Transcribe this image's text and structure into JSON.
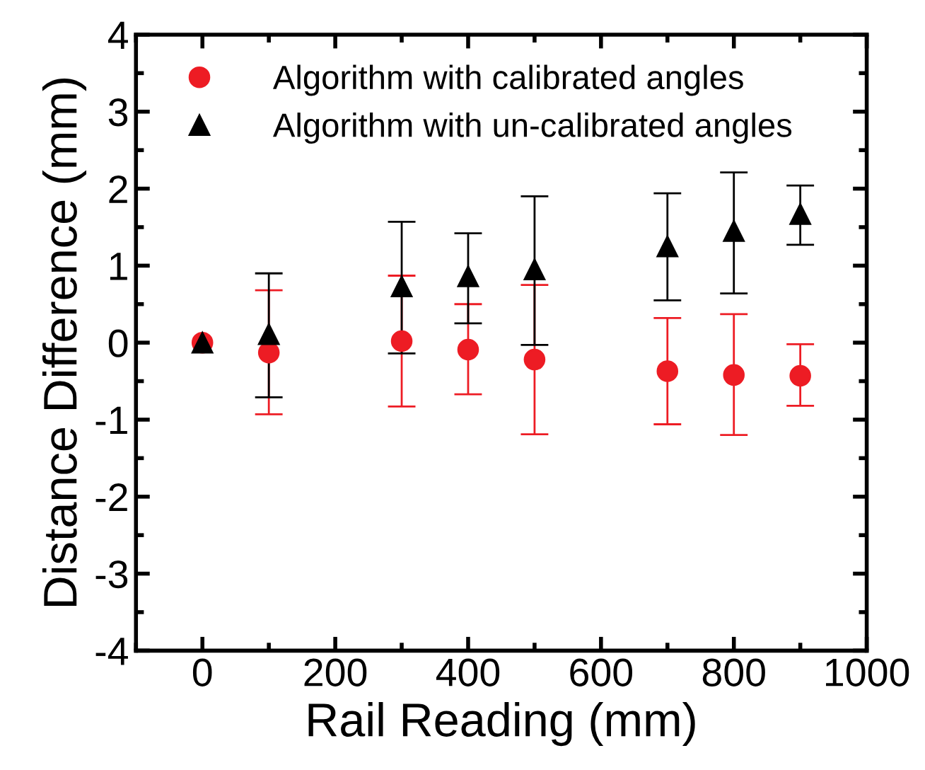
{
  "chart_data": {
    "type": "scatter",
    "xlabel": "Rail Reading (mm)",
    "ylabel": "Distance Difference (mm)",
    "x": [
      0,
      100,
      300,
      400,
      500,
      700,
      800,
      900
    ],
    "xlim": [
      -100,
      1000
    ],
    "xticks": [
      0,
      200,
      400,
      600,
      800,
      1000
    ],
    "ylim": [
      -4,
      4
    ],
    "yticks": [
      -4,
      -3,
      -2,
      -1,
      0,
      1,
      2,
      3,
      4
    ],
    "grid": false,
    "legend": "top left",
    "series": [
      {
        "name": "Algorithm with calibrated angles",
        "color": "#ed1c24",
        "marker": "circle",
        "values": [
          0,
          -0.13,
          0.02,
          -0.09,
          -0.22,
          -0.37,
          -0.42,
          -0.43
        ],
        "errors": [
          null,
          [
            -0.93,
            0.68
          ],
          [
            -0.83,
            0.87
          ],
          [
            -0.67,
            0.5
          ],
          [
            -1.19,
            0.75
          ],
          [
            -1.06,
            0.32
          ],
          [
            -1.2,
            0.37
          ],
          [
            -0.82,
            -0.02
          ]
        ]
      },
      {
        "name": "Algorithm with un-calibrated angles",
        "color": "#000000",
        "marker": "triangle",
        "values": [
          0,
          0.11,
          0.73,
          0.86,
          0.95,
          1.25,
          1.45,
          1.67
        ],
        "errors": [
          null,
          [
            -0.71,
            0.9
          ],
          [
            -0.14,
            1.57
          ],
          [
            0.25,
            1.42
          ],
          [
            -0.03,
            1.9
          ],
          [
            0.55,
            1.94
          ],
          [
            0.64,
            2.21
          ],
          [
            1.27,
            2.04
          ]
        ]
      }
    ]
  }
}
